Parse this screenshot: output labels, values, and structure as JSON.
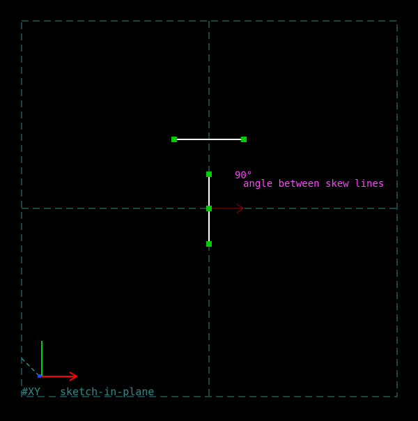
{
  "colors": {
    "background": "#000000",
    "guide": "#2a8a8a",
    "line": "#ffffff",
    "point": "#00cc00",
    "constraint": "#ff44ff",
    "normal_arrow": "#aa0000",
    "axis_x": "#ff0000",
    "axis_y": "#00cc00",
    "axis_z": "#2a8a8a",
    "plane_label": "#2a8a8a"
  },
  "constraint": {
    "value": "90°",
    "comment": "angle between skew lines"
  },
  "plane": {
    "name": "#XY",
    "label": "sketch-in-plane"
  }
}
